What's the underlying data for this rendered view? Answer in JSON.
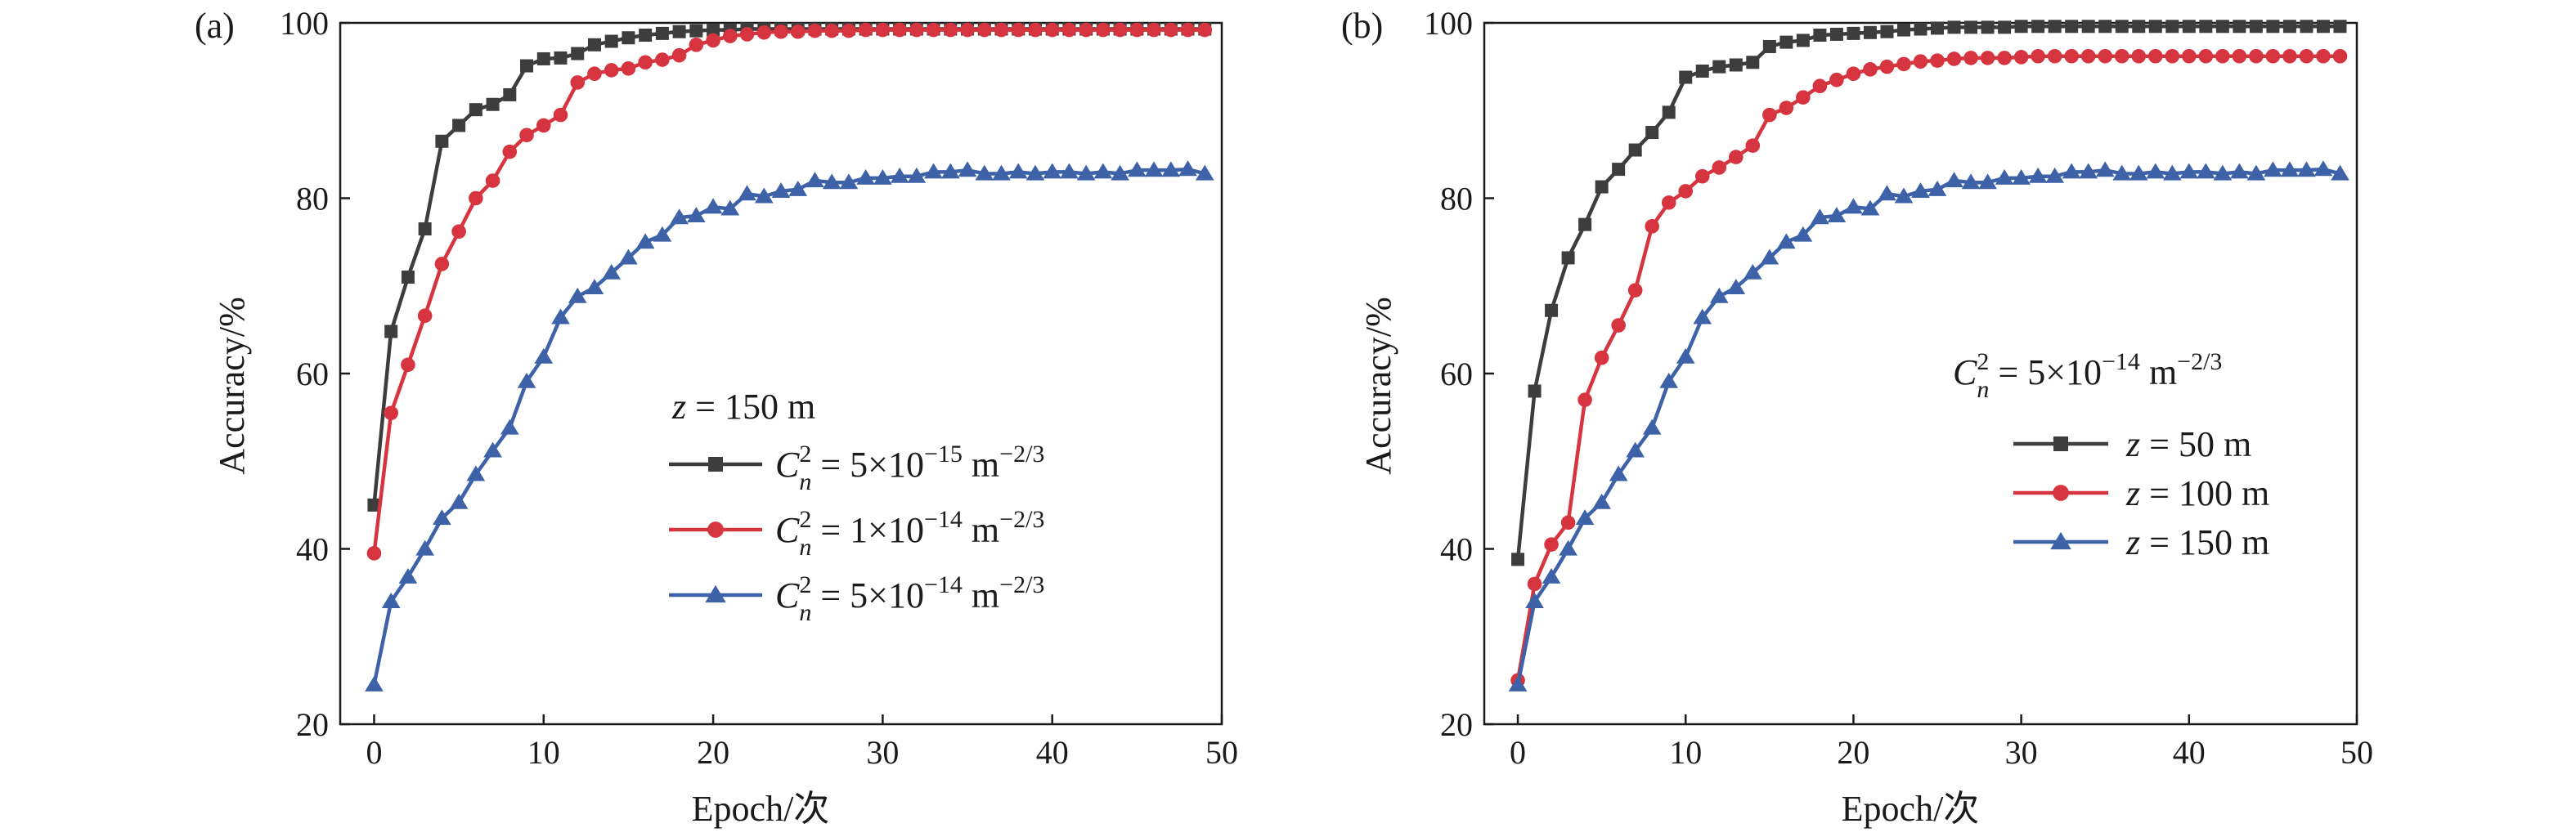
{
  "chart_data": [
    {
      "type": "line",
      "panel_label": "(a)",
      "xlabel": "Epoch/次",
      "ylabel": "Accuracy/%",
      "xlim": [
        -2,
        50
      ],
      "ylim": [
        20,
        100
      ],
      "xticks": [
        0,
        10,
        20,
        30,
        40,
        50
      ],
      "yticks": [
        20,
        40,
        60,
        80,
        100
      ],
      "grid": false,
      "legend_placement": "center-right",
      "legend_title": "z = 150 m",
      "x": [
        0,
        1,
        2,
        3,
        4,
        5,
        6,
        7,
        8,
        9,
        10,
        11,
        12,
        13,
        14,
        15,
        16,
        17,
        18,
        19,
        20,
        21,
        22,
        23,
        24,
        25,
        26,
        27,
        28,
        29,
        30,
        31,
        32,
        33,
        34,
        35,
        36,
        37,
        38,
        39,
        40,
        41,
        42,
        43,
        44,
        45,
        46,
        47,
        48,
        49
      ],
      "series": [
        {
          "name": "Cn² = 5×10⁻¹⁵ m⁻²ᐟ³",
          "label_coeff": "5",
          "label_exp": "−15",
          "color": "#3d3d3d",
          "marker": "square",
          "values": [
            45,
            64.8,
            71,
            76.5,
            86.5,
            88.3,
            90.1,
            90.7,
            91.8,
            95.1,
            95.9,
            96,
            96.5,
            97.5,
            97.9,
            98.3,
            98.6,
            98.8,
            99,
            99.1,
            99.2,
            99.2,
            99.3,
            99.3,
            99.3,
            99.3,
            99.3,
            99.3,
            99.3,
            99.3,
            99.3,
            99.3,
            99.3,
            99.3,
            99.3,
            99.3,
            99.3,
            99.3,
            99.3,
            99.3,
            99.3,
            99.3,
            99.3,
            99.3,
            99.3,
            99.3,
            99.3,
            99.3,
            99.3,
            99.3
          ]
        },
        {
          "name": "Cn² = 1×10⁻¹⁴ m⁻²ᐟ³",
          "label_coeff": "1",
          "label_exp": "−14",
          "color": "#d6353f",
          "marker": "circle",
          "values": [
            39.5,
            55.5,
            61,
            66.6,
            72.5,
            76.2,
            80,
            82,
            85.3,
            87.2,
            88.3,
            89.5,
            93.2,
            94.2,
            94.6,
            94.8,
            95.5,
            95.8,
            96.3,
            97.5,
            98,
            98.5,
            98.7,
            98.9,
            99,
            99,
            99.1,
            99.1,
            99.1,
            99.2,
            99.2,
            99.2,
            99.2,
            99.2,
            99.2,
            99.2,
            99.2,
            99.2,
            99.2,
            99.2,
            99.2,
            99.2,
            99.2,
            99.2,
            99.2,
            99.2,
            99.2,
            99.2,
            99.2,
            99.2
          ]
        },
        {
          "name": "Cn² = 5×10⁻¹⁴ m⁻²ᐟ³",
          "label_coeff": "5",
          "label_exp": "−14",
          "color": "#3d62a8",
          "marker": "triangle",
          "values": [
            24.5,
            34,
            36.8,
            40,
            43.5,
            45.3,
            48.5,
            51.2,
            53.8,
            59.1,
            61.9,
            66.4,
            68.8,
            69.8,
            71.5,
            73.2,
            75,
            75.8,
            77.8,
            78,
            79,
            78.8,
            80.5,
            80.2,
            80.8,
            81,
            82,
            81.8,
            81.8,
            82.3,
            82.3,
            82.5,
            82.5,
            83,
            83,
            83.2,
            82.8,
            82.8,
            83,
            82.8,
            83,
            83,
            82.8,
            83,
            82.8,
            83.2,
            83.2,
            83.2,
            83.3,
            82.8
          ]
        }
      ]
    },
    {
      "type": "line",
      "panel_label": "(b)",
      "xlabel": "Epoch/次",
      "ylabel": "Accuracy/%",
      "xlim": [
        -2,
        50
      ],
      "ylim": [
        20,
        100
      ],
      "xticks": [
        0,
        10,
        20,
        30,
        40,
        50
      ],
      "yticks": [
        20,
        40,
        60,
        80,
        100
      ],
      "grid": false,
      "legend_placement": "center-right",
      "legend_title": "Cn² = 5×10⁻¹⁴ m⁻²ᐟ³",
      "legend_title_coeff": "5",
      "legend_title_exp": "−14",
      "x": [
        0,
        1,
        2,
        3,
        4,
        5,
        6,
        7,
        8,
        9,
        10,
        11,
        12,
        13,
        14,
        15,
        16,
        17,
        18,
        19,
        20,
        21,
        22,
        23,
        24,
        25,
        26,
        27,
        28,
        29,
        30,
        31,
        32,
        33,
        34,
        35,
        36,
        37,
        38,
        39,
        40,
        41,
        42,
        43,
        44,
        45,
        46,
        47,
        48,
        49
      ],
      "series": [
        {
          "name": "z = 50 m",
          "label_var": "z",
          "label_rest": "= 50 m",
          "color": "#3d3d3d",
          "marker": "square",
          "values": [
            38.8,
            58,
            67.2,
            73.2,
            77,
            81.3,
            83.3,
            85.5,
            87.5,
            89.8,
            93.8,
            94.5,
            95,
            95.2,
            95.5,
            97.3,
            97.8,
            98,
            98.6,
            98.7,
            98.8,
            98.9,
            99,
            99.2,
            99.3,
            99.4,
            99.5,
            99.5,
            99.5,
            99.5,
            99.6,
            99.6,
            99.6,
            99.6,
            99.6,
            99.6,
            99.6,
            99.6,
            99.6,
            99.6,
            99.6,
            99.6,
            99.6,
            99.6,
            99.6,
            99.6,
            99.6,
            99.6,
            99.6,
            99.6
          ]
        },
        {
          "name": "z = 100 m",
          "label_var": "z",
          "label_rest": "= 100 m",
          "color": "#d6353f",
          "marker": "circle",
          "values": [
            25,
            36,
            40.5,
            43,
            57,
            61.8,
            65.5,
            69.5,
            76.8,
            79.5,
            80.8,
            82.5,
            83.5,
            84.7,
            86,
            89.5,
            90.3,
            91.5,
            92.8,
            93.5,
            94.2,
            94.7,
            95,
            95.3,
            95.6,
            95.7,
            95.9,
            96,
            96,
            96,
            96.1,
            96.2,
            96.2,
            96.2,
            96.2,
            96.2,
            96.2,
            96.2,
            96.2,
            96.2,
            96.2,
            96.2,
            96.2,
            96.2,
            96.2,
            96.2,
            96.2,
            96.2,
            96.2,
            96.2
          ]
        },
        {
          "name": "z = 150 m",
          "label_var": "z",
          "label_rest": "= 150 m",
          "color": "#3d62a8",
          "marker": "triangle",
          "values": [
            24.5,
            34,
            36.8,
            40,
            43.5,
            45.3,
            48.5,
            51.2,
            53.8,
            59.1,
            61.9,
            66.4,
            68.8,
            69.8,
            71.5,
            73.2,
            75,
            75.8,
            77.8,
            78,
            79,
            78.8,
            80.5,
            80.2,
            80.8,
            81,
            82,
            81.8,
            81.8,
            82.3,
            82.3,
            82.5,
            82.5,
            83,
            83,
            83.2,
            82.8,
            82.8,
            83,
            82.8,
            83,
            83,
            82.8,
            83,
            82.8,
            83.2,
            83.2,
            83.2,
            83.3,
            82.8
          ]
        }
      ]
    }
  ]
}
